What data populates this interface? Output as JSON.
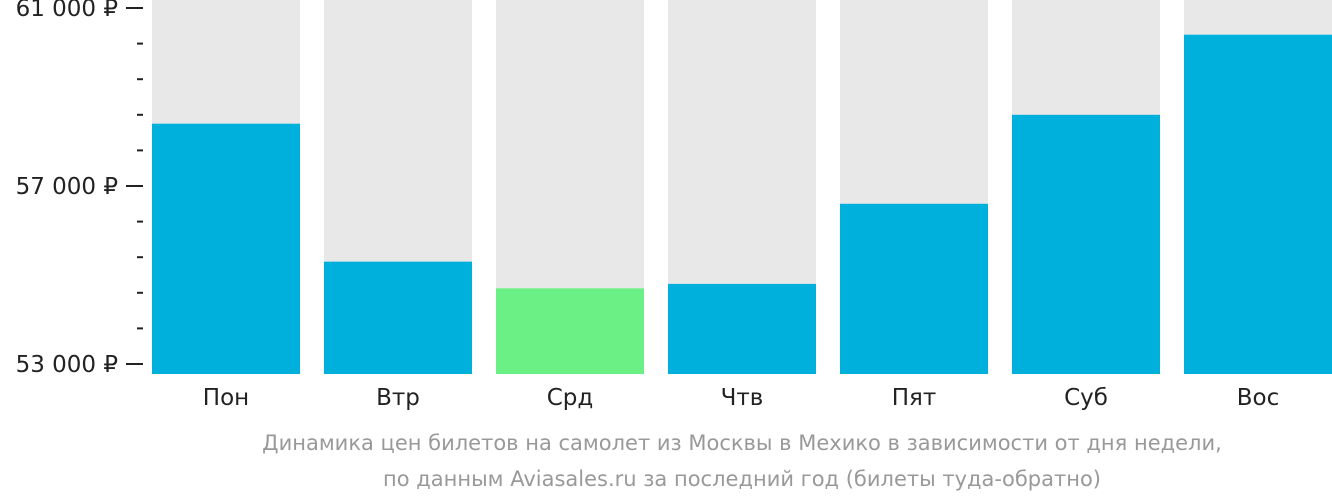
{
  "chart_data": {
    "type": "bar",
    "categories": [
      "Пон",
      "Втр",
      "Срд",
      "Чтв",
      "Пят",
      "Суб",
      "Вос"
    ],
    "values": [
      58400,
      55300,
      54700,
      54800,
      56600,
      58600,
      60400
    ],
    "ylim": [
      53000,
      61000
    ],
    "yticks": [
      {
        "value": 61000,
        "label": "61 000 ₽"
      },
      {
        "value": 57000,
        "label": "57 000 ₽"
      },
      {
        "value": 53000,
        "label": "53 000 ₽"
      }
    ],
    "minor_tick_step": 800,
    "highlight_index": 2,
    "colors": {
      "bar": "#00b0dc",
      "highlight": "#6bf085",
      "background": "#e8e8e8",
      "axis_text": "#222222",
      "caption": "#999999"
    },
    "title": "",
    "xlabel": "",
    "ylabel": ""
  },
  "caption": {
    "line1": "Динамика цен билетов на самолет из Москвы в Мехико в зависимости от дня недели,",
    "line2": "по данным Aviasales.ru за последний год (билеты туда-обратно)"
  }
}
